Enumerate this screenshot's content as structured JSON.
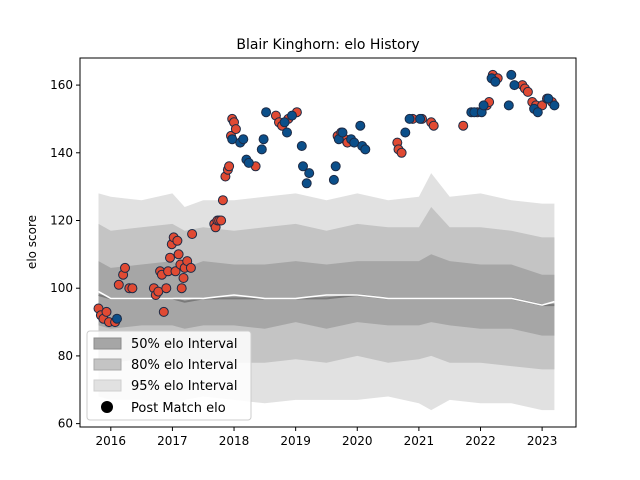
{
  "chart_data": {
    "type": "scatter",
    "title": "Blair Kinghorn: elo History",
    "xlabel": "",
    "ylabel": "elo score",
    "xlim": [
      2015.5,
      2023.55
    ],
    "ylim": [
      59,
      168
    ],
    "x_ticks": [
      2016,
      2017,
      2018,
      2019,
      2020,
      2021,
      2022,
      2023
    ],
    "x_tick_labels": [
      "2016",
      "2017",
      "2018",
      "2019",
      "2020",
      "2021",
      "2022",
      "2023"
    ],
    "y_ticks": [
      60,
      80,
      100,
      120,
      140,
      160
    ],
    "y_tick_labels": [
      "60",
      "80",
      "100",
      "120",
      "140",
      "160"
    ],
    "legend": {
      "position": "lower-left",
      "entries": [
        "50% elo Interval",
        "80% elo Interval",
        "95% elo Interval",
        "Post Match elo"
      ]
    },
    "colors": {
      "band50": "#a6a6a6",
      "band80": "#c4c4c4",
      "band95": "#e1e1e1",
      "median": "#ffffff",
      "mean": "#7a7a7a",
      "win_point": "#e04a33",
      "loss_point": "#0b4f8a",
      "point_edge": "#1c2a45"
    },
    "interval_bands": {
      "x": [
        2015.8,
        2016.0,
        2016.5,
        2017.0,
        2017.2,
        2017.5,
        2018.0,
        2018.5,
        2019.0,
        2019.5,
        2020.0,
        2020.5,
        2021.0,
        2021.2,
        2021.5,
        2022.0,
        2022.5,
        2023.0,
        2023.2
      ],
      "p97_5": [
        128,
        127,
        126,
        128,
        124,
        126,
        126,
        127,
        128,
        126,
        128,
        126,
        127,
        134,
        127,
        128,
        126,
        125,
        125
      ],
      "p90": [
        119,
        117,
        118,
        119,
        117,
        118,
        117,
        118,
        119,
        117,
        119,
        118,
        118,
        124,
        118,
        118,
        117,
        115,
        115
      ],
      "p75": [
        108,
        106,
        107,
        108,
        106,
        108,
        107,
        107,
        108,
        107,
        108,
        108,
        108,
        110,
        108,
        107,
        107,
        104,
        104
      ],
      "p25": [
        89,
        88,
        89,
        89,
        88,
        89,
        89,
        88,
        90,
        88,
        90,
        89,
        89,
        90,
        89,
        88,
        88,
        86,
        86
      ],
      "p10": [
        79,
        78,
        79,
        78,
        78,
        79,
        78,
        78,
        79,
        78,
        80,
        78,
        79,
        80,
        78,
        78,
        77,
        76,
        76
      ],
      "p2_5": [
        68,
        67,
        67,
        66,
        67,
        68,
        67,
        66,
        67,
        67,
        67,
        68,
        66,
        64,
        67,
        66,
        66,
        64,
        64
      ],
      "median": [
        99,
        97,
        97,
        97,
        97,
        97,
        98,
        97,
        97,
        98,
        98,
        97,
        97,
        97,
        97,
        97,
        97,
        95,
        96
      ],
      "mean": [
        98,
        97,
        97,
        97,
        96,
        97,
        97,
        97,
        97,
        97,
        98,
        97,
        97,
        97,
        97,
        97,
        97,
        95,
        95
      ]
    },
    "series": [
      {
        "name": "Post Match elo",
        "marker": "win",
        "points": [
          [
            2015.8,
            94
          ],
          [
            2015.84,
            92
          ],
          [
            2015.88,
            91
          ],
          [
            2015.93,
            93
          ],
          [
            2015.97,
            90
          ],
          [
            2016.07,
            90
          ],
          [
            2016.13,
            101
          ],
          [
            2016.2,
            104
          ],
          [
            2016.23,
            106
          ],
          [
            2016.3,
            100
          ],
          [
            2016.35,
            100
          ],
          [
            2016.7,
            100
          ],
          [
            2016.73,
            98
          ],
          [
            2016.77,
            99
          ],
          [
            2016.8,
            105
          ],
          [
            2016.83,
            104
          ],
          [
            2016.86,
            93
          ],
          [
            2016.9,
            100
          ],
          [
            2016.93,
            105
          ],
          [
            2016.96,
            109
          ],
          [
            2016.99,
            113
          ],
          [
            2017.02,
            115
          ],
          [
            2017.05,
            105
          ],
          [
            2017.08,
            114
          ],
          [
            2017.1,
            110
          ],
          [
            2017.13,
            107
          ],
          [
            2017.15,
            100
          ],
          [
            2017.18,
            103
          ],
          [
            2017.2,
            106
          ],
          [
            2017.24,
            108
          ],
          [
            2017.3,
            106
          ],
          [
            2017.32,
            116
          ],
          [
            2017.68,
            119
          ],
          [
            2017.7,
            118
          ],
          [
            2017.73,
            120
          ],
          [
            2017.76,
            120
          ],
          [
            2017.79,
            120
          ],
          [
            2017.82,
            126
          ],
          [
            2017.86,
            133
          ],
          [
            2017.9,
            135
          ],
          [
            2017.92,
            136
          ],
          [
            2017.95,
            145
          ],
          [
            2017.97,
            150
          ],
          [
            2018.0,
            149
          ],
          [
            2018.03,
            147
          ],
          [
            2018.35,
            136
          ],
          [
            2018.68,
            151
          ],
          [
            2018.73,
            149
          ],
          [
            2018.78,
            148
          ],
          [
            2018.88,
            150
          ],
          [
            2019.02,
            152
          ],
          [
            2019.68,
            145
          ],
          [
            2019.74,
            146
          ],
          [
            2019.8,
            144
          ],
          [
            2019.84,
            143
          ],
          [
            2020.65,
            143
          ],
          [
            2020.67,
            141
          ],
          [
            2020.72,
            140
          ],
          [
            2020.9,
            150
          ],
          [
            2021.05,
            150
          ],
          [
            2021.2,
            149
          ],
          [
            2021.24,
            148
          ],
          [
            2021.72,
            148
          ],
          [
            2021.95,
            152
          ],
          [
            2022.08,
            154
          ],
          [
            2022.1,
            154
          ],
          [
            2022.14,
            155
          ],
          [
            2022.2,
            163
          ],
          [
            2022.28,
            162
          ],
          [
            2022.68,
            160
          ],
          [
            2022.72,
            159
          ],
          [
            2022.77,
            158
          ],
          [
            2022.84,
            155
          ],
          [
            2022.9,
            154
          ],
          [
            2023.0,
            154
          ],
          [
            2023.08,
            156
          ],
          [
            2023.16,
            155
          ]
        ]
      },
      {
        "name": "Post Match elo",
        "marker": "loss",
        "points": [
          [
            2016.1,
            91
          ],
          [
            2017.97,
            144
          ],
          [
            2018.1,
            143
          ],
          [
            2018.15,
            144
          ],
          [
            2018.2,
            138
          ],
          [
            2018.24,
            137
          ],
          [
            2018.45,
            141
          ],
          [
            2018.48,
            144
          ],
          [
            2018.52,
            152
          ],
          [
            2018.82,
            149
          ],
          [
            2018.86,
            146
          ],
          [
            2018.94,
            151
          ],
          [
            2019.1,
            142
          ],
          [
            2019.12,
            136
          ],
          [
            2019.18,
            131
          ],
          [
            2019.22,
            134
          ],
          [
            2019.62,
            132
          ],
          [
            2019.65,
            136
          ],
          [
            2019.7,
            144
          ],
          [
            2019.76,
            146
          ],
          [
            2019.9,
            144
          ],
          [
            2019.95,
            143
          ],
          [
            2020.05,
            148
          ],
          [
            2020.08,
            142
          ],
          [
            2020.13,
            141
          ],
          [
            2020.78,
            146
          ],
          [
            2020.85,
            150
          ],
          [
            2021.02,
            150
          ],
          [
            2021.85,
            152
          ],
          [
            2021.9,
            152
          ],
          [
            2022.02,
            152
          ],
          [
            2022.05,
            154
          ],
          [
            2022.18,
            162
          ],
          [
            2022.24,
            161
          ],
          [
            2022.46,
            154
          ],
          [
            2022.5,
            163
          ],
          [
            2022.55,
            160
          ],
          [
            2022.87,
            153
          ],
          [
            2022.93,
            152
          ],
          [
            2023.1,
            156
          ],
          [
            2023.2,
            154
          ]
        ]
      }
    ]
  }
}
